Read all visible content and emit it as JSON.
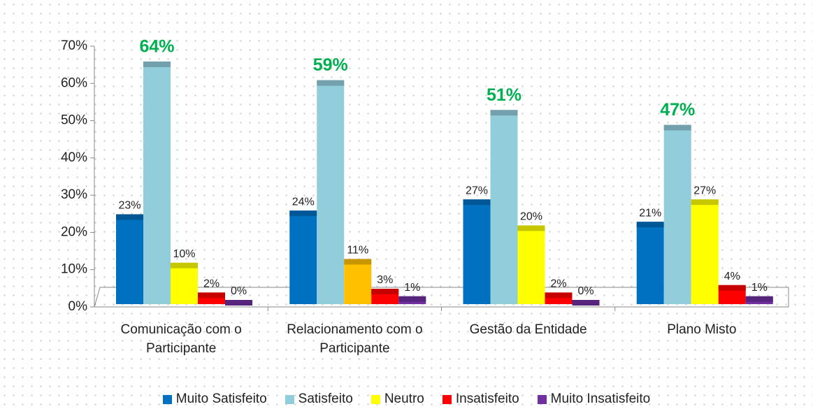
{
  "chart_data": {
    "type": "bar",
    "categories": [
      "Comunicação com o Participante",
      "Relacionamento com o Participante",
      "Gestão da Entidade",
      "Plano Misto"
    ],
    "series": [
      {
        "name": "Muito Satisfeito",
        "color": "#0070c0",
        "values": [
          23,
          24,
          27,
          21
        ],
        "value_labels": [
          "23%",
          "24%",
          "27%",
          "21%"
        ]
      },
      {
        "name": "Satisfeito",
        "color": "#92cddc",
        "values": [
          64,
          59,
          51,
          47
        ],
        "value_labels": [
          "64%",
          "59%",
          "51%",
          "47%"
        ],
        "label_color": "#00b050"
      },
      {
        "name": "Neutro",
        "color": "#ffff00",
        "colors": [
          "#ffff00",
          "#ffc000",
          "#ffff00",
          "#ffff00"
        ],
        "values": [
          10,
          11,
          20,
          27
        ],
        "value_labels": [
          "10%",
          "11%",
          "20%",
          "27%"
        ]
      },
      {
        "name": "Insatisfeito",
        "color": "#ff0000",
        "values": [
          2,
          3,
          2,
          4
        ],
        "value_labels": [
          "2%",
          "3%",
          "2%",
          "4%"
        ]
      },
      {
        "name": "Muito Insatisfeito",
        "color": "#7030a0",
        "values": [
          0,
          1,
          0,
          1
        ],
        "value_labels": [
          "0%",
          "1%",
          "0%",
          "1%"
        ]
      }
    ],
    "ylim": [
      0,
      70
    ],
    "yticks": [
      {
        "value": 0,
        "label": "0%"
      },
      {
        "value": 10,
        "label": "10%"
      },
      {
        "value": 20,
        "label": "20%"
      },
      {
        "value": 30,
        "label": "30%"
      },
      {
        "value": 40,
        "label": "40%"
      },
      {
        "value": 50,
        "label": "50%"
      },
      {
        "value": 60,
        "label": "60%"
      },
      {
        "value": 70,
        "label": "70%"
      }
    ],
    "legend": "bottom"
  }
}
